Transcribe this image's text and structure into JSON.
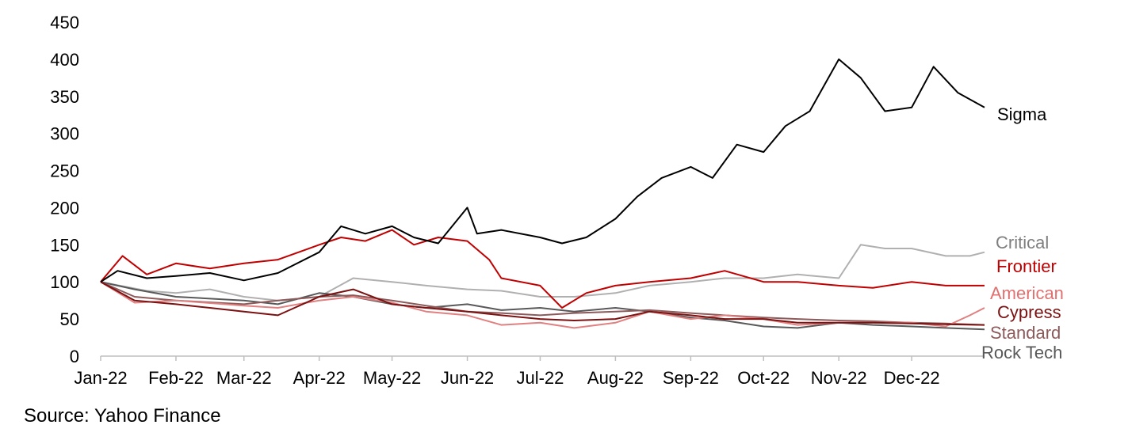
{
  "chart_data": {
    "type": "line",
    "title": "",
    "xlabel": "",
    "ylabel": "",
    "ylim": [
      0,
      450
    ],
    "yticks": [
      0,
      50,
      100,
      150,
      200,
      250,
      300,
      350,
      400,
      450
    ],
    "xlim": [
      "2022-01-01",
      "2022-12-31"
    ],
    "xticks": [
      "2022-01-01",
      "2022-02-01",
      "2022-03-01",
      "2022-04-01",
      "2022-05-01",
      "2022-06-01",
      "2022-07-01",
      "2022-08-01",
      "2022-09-01",
      "2022-10-01",
      "2022-11-01",
      "2022-12-01"
    ],
    "xtick_labels": [
      "Jan-22",
      "Feb-22",
      "Mar-22",
      "Apr-22",
      "May-22",
      "Jun-22",
      "Jul-22",
      "Aug-22",
      "Sep-22",
      "Oct-22",
      "Nov-22",
      "Dec-22"
    ],
    "grid": false,
    "legend": "end-of-line labels",
    "series": [
      {
        "name": "Sigma",
        "color": "#000000",
        "label_color": "#000000",
        "x": [
          "2022-01-01",
          "2022-01-08",
          "2022-01-20",
          "2022-02-01",
          "2022-02-15",
          "2022-03-01",
          "2022-03-15",
          "2022-04-01",
          "2022-04-10",
          "2022-04-20",
          "2022-05-01",
          "2022-05-10",
          "2022-05-20",
          "2022-06-01",
          "2022-06-05",
          "2022-06-15",
          "2022-07-01",
          "2022-07-10",
          "2022-07-20",
          "2022-08-01",
          "2022-08-10",
          "2022-08-20",
          "2022-09-01",
          "2022-09-10",
          "2022-09-20",
          "2022-10-01",
          "2022-10-10",
          "2022-10-20",
          "2022-11-01",
          "2022-11-10",
          "2022-11-20",
          "2022-12-01",
          "2022-12-10",
          "2022-12-20",
          "2022-12-31"
        ],
        "values": [
          100,
          115,
          105,
          108,
          112,
          102,
          112,
          140,
          175,
          165,
          175,
          160,
          152,
          200,
          165,
          170,
          160,
          152,
          160,
          185,
          215,
          240,
          255,
          240,
          285,
          275,
          310,
          330,
          400,
          375,
          330,
          335,
          390,
          355,
          335
        ]
      },
      {
        "name": "Critical",
        "color": "#b0b0b0",
        "label_color": "#7f7f7f",
        "x": [
          "2022-01-01",
          "2022-01-20",
          "2022-02-01",
          "2022-02-15",
          "2022-03-01",
          "2022-03-15",
          "2022-04-01",
          "2022-04-15",
          "2022-05-01",
          "2022-05-15",
          "2022-06-01",
          "2022-06-15",
          "2022-07-01",
          "2022-07-15",
          "2022-08-01",
          "2022-08-15",
          "2022-09-01",
          "2022-09-15",
          "2022-10-01",
          "2022-10-15",
          "2022-11-01",
          "2022-11-10",
          "2022-11-20",
          "2022-12-01",
          "2022-12-15",
          "2022-12-25",
          "2022-12-31"
        ],
        "values": [
          100,
          88,
          85,
          90,
          80,
          75,
          80,
          105,
          100,
          95,
          90,
          88,
          80,
          80,
          85,
          95,
          100,
          105,
          105,
          110,
          105,
          150,
          145,
          145,
          135,
          135,
          140
        ]
      },
      {
        "name": "Frontier",
        "color": "#c00000",
        "label_color": "#c00000",
        "x": [
          "2022-01-01",
          "2022-01-10",
          "2022-01-20",
          "2022-02-01",
          "2022-02-15",
          "2022-03-01",
          "2022-03-15",
          "2022-04-01",
          "2022-04-10",
          "2022-04-20",
          "2022-05-01",
          "2022-05-10",
          "2022-05-20",
          "2022-06-01",
          "2022-06-10",
          "2022-06-15",
          "2022-07-01",
          "2022-07-10",
          "2022-07-20",
          "2022-08-01",
          "2022-08-15",
          "2022-09-01",
          "2022-09-15",
          "2022-10-01",
          "2022-10-15",
          "2022-11-01",
          "2022-11-15",
          "2022-12-01",
          "2022-12-15",
          "2022-12-31"
        ],
        "values": [
          100,
          135,
          110,
          125,
          118,
          125,
          130,
          150,
          160,
          155,
          170,
          150,
          160,
          155,
          130,
          105,
          95,
          65,
          85,
          95,
          100,
          105,
          115,
          100,
          100,
          95,
          92,
          100,
          95,
          95
        ]
      },
      {
        "name": "American",
        "color": "#e08080",
        "label_color": "#e07070",
        "x": [
          "2022-01-01",
          "2022-01-15",
          "2022-02-01",
          "2022-03-01",
          "2022-03-15",
          "2022-04-01",
          "2022-04-15",
          "2022-05-01",
          "2022-05-15",
          "2022-06-01",
          "2022-06-15",
          "2022-07-01",
          "2022-07-15",
          "2022-08-01",
          "2022-08-15",
          "2022-09-01",
          "2022-09-15",
          "2022-10-01",
          "2022-10-15",
          "2022-11-01",
          "2022-11-15",
          "2022-12-01",
          "2022-12-15",
          "2022-12-25",
          "2022-12-31"
        ],
        "values": [
          100,
          72,
          75,
          68,
          65,
          75,
          80,
          72,
          60,
          55,
          42,
          45,
          38,
          45,
          60,
          50,
          55,
          50,
          42,
          45,
          45,
          45,
          40,
          55,
          65
        ]
      },
      {
        "name": "Cypress",
        "color": "#7b1111",
        "label_color": "#7b1111",
        "x": [
          "2022-01-01",
          "2022-01-15",
          "2022-02-01",
          "2022-02-15",
          "2022-03-01",
          "2022-03-15",
          "2022-04-01",
          "2022-04-15",
          "2022-05-01",
          "2022-05-15",
          "2022-06-01",
          "2022-06-15",
          "2022-07-01",
          "2022-07-15",
          "2022-08-01",
          "2022-08-15",
          "2022-09-01",
          "2022-09-15",
          "2022-10-01",
          "2022-10-15",
          "2022-11-01",
          "2022-11-15",
          "2022-12-01",
          "2022-12-15",
          "2022-12-31"
        ],
        "values": [
          100,
          75,
          70,
          65,
          60,
          55,
          80,
          90,
          70,
          65,
          60,
          55,
          50,
          48,
          50,
          60,
          55,
          50,
          50,
          45,
          45,
          45,
          44,
          43,
          42
        ]
      },
      {
        "name": "Standard",
        "color": "#8c5a5a",
        "label_color": "#8c5a5a",
        "x": [
          "2022-01-01",
          "2022-01-15",
          "2022-02-01",
          "2022-03-01",
          "2022-03-15",
          "2022-04-01",
          "2022-04-15",
          "2022-05-01",
          "2022-05-15",
          "2022-06-01",
          "2022-06-15",
          "2022-07-01",
          "2022-07-15",
          "2022-08-01",
          "2022-08-15",
          "2022-09-01",
          "2022-09-15",
          "2022-10-01",
          "2022-10-15",
          "2022-11-01",
          "2022-11-15",
          "2022-12-01",
          "2022-12-15",
          "2022-12-31"
        ],
        "values": [
          100,
          80,
          75,
          70,
          75,
          80,
          82,
          75,
          68,
          60,
          58,
          55,
          58,
          60,
          62,
          58,
          55,
          52,
          50,
          48,
          47,
          45,
          44,
          42
        ]
      },
      {
        "name": "Rock Tech",
        "color": "#595959",
        "label_color": "#595959",
        "x": [
          "2022-01-01",
          "2022-01-15",
          "2022-02-01",
          "2022-03-01",
          "2022-03-15",
          "2022-04-01",
          "2022-04-15",
          "2022-05-01",
          "2022-05-15",
          "2022-06-01",
          "2022-06-15",
          "2022-07-01",
          "2022-07-15",
          "2022-08-01",
          "2022-08-15",
          "2022-09-01",
          "2022-09-15",
          "2022-10-01",
          "2022-10-15",
          "2022-11-01",
          "2022-11-15",
          "2022-12-01",
          "2022-12-15",
          "2022-12-31"
        ],
        "values": [
          100,
          90,
          80,
          75,
          70,
          85,
          80,
          70,
          65,
          70,
          62,
          65,
          60,
          65,
          60,
          52,
          48,
          40,
          38,
          45,
          42,
          40,
          38,
          36
        ]
      }
    ]
  },
  "source_text": "Source: Yahoo Finance"
}
